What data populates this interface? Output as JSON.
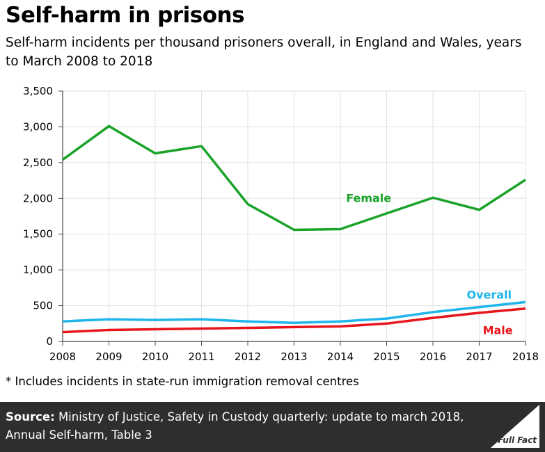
{
  "header": {
    "title": "Self-harm in prisons",
    "subtitle": "Self-harm incidents per thousand prisoners overall, in England and Wales, years to March 2008 to 2018"
  },
  "footnote": "* Includes incidents in state-run immigration removal centres",
  "footer": {
    "source_label": "Source:",
    "source_text": "Ministry of Justice, Safety in Custody quarterly: update to march 2018, Annual Self-harm, Table 3",
    "brand": "Full Fact"
  },
  "chart_data": {
    "type": "line",
    "title": "Self-harm in prisons",
    "x": [
      2008,
      2009,
      2010,
      2011,
      2012,
      2013,
      2014,
      2015,
      2016,
      2017,
      2018
    ],
    "ylim": [
      0,
      3500
    ],
    "yticks": [
      0,
      500,
      1000,
      1500,
      2000,
      2500,
      3000,
      3500
    ],
    "ytick_labels": [
      "0",
      "500",
      "1,000",
      "1,500",
      "2,000",
      "2,500",
      "3,000",
      "3,500"
    ],
    "grid": "horizontal and vertical",
    "series": [
      {
        "name": "Female",
        "color": "#1aa329",
        "values": [
          2540,
          3010,
          2630,
          2730,
          1920,
          1560,
          1570,
          1790,
          2010,
          1840,
          2260
        ]
      },
      {
        "name": "Overall",
        "color": "#1fb4ea",
        "values": [
          280,
          310,
          300,
          310,
          280,
          260,
          280,
          320,
          410,
          480,
          550
        ]
      },
      {
        "name": "Male",
        "color": "#e8151c",
        "values": [
          130,
          160,
          170,
          180,
          190,
          200,
          210,
          250,
          330,
          400,
          460
        ]
      }
    ]
  }
}
